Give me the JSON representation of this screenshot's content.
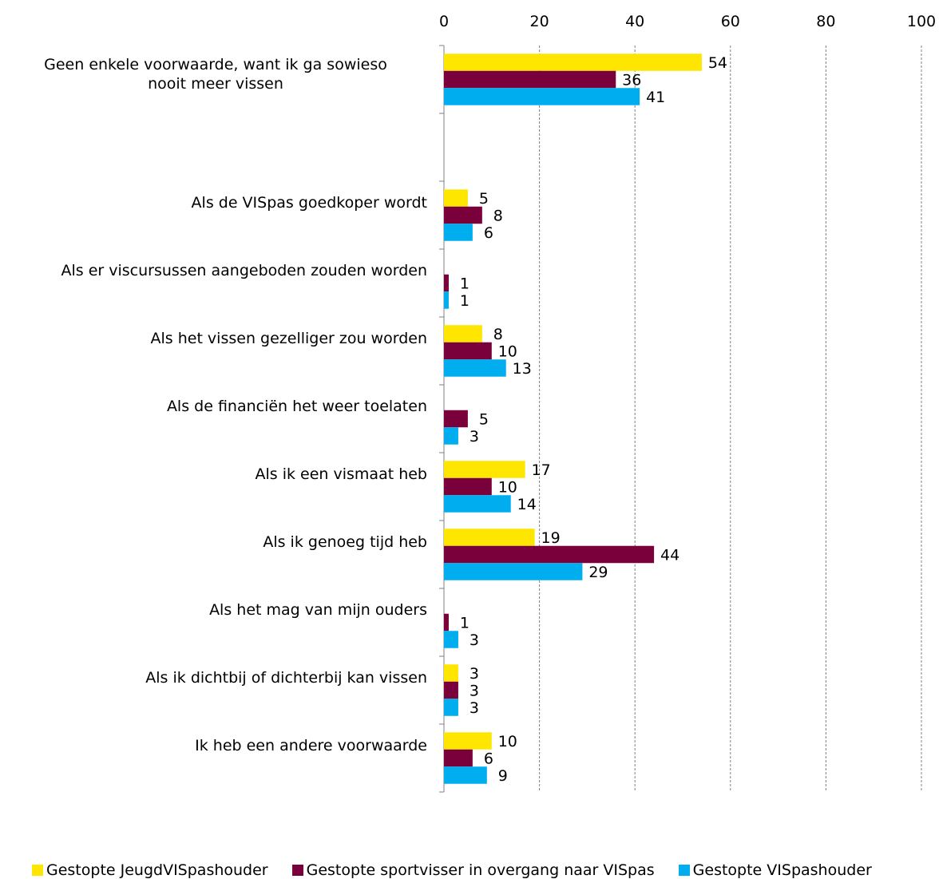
{
  "chart_data": {
    "type": "bar",
    "orientation": "horizontal",
    "categories": [
      "Geen enkele voorwaarde, want ik ga sowieso nooit meer vissen",
      "",
      "Als de VISpas goedkoper wordt",
      "Als er viscursussen aangeboden zouden worden",
      "Als het vissen gezelliger zou worden",
      "Als de financiën het weer toelaten",
      "Als ik een vismaat heb",
      "Als ik genoeg tijd heb",
      "Als het mag van mijn ouders",
      "Als ik dichtbij of dichterbij kan vissen",
      "Ik heb een andere voorwaarde"
    ],
    "series": [
      {
        "name": "Gestopte JeugdVISpashouder",
        "color": "#FFE600",
        "values": [
          54,
          null,
          5,
          null,
          8,
          null,
          17,
          19,
          null,
          3,
          10
        ]
      },
      {
        "name": "Gestopte sportvisser in overgang naar VISpas",
        "color": "#7A003C",
        "values": [
          36,
          null,
          8,
          1,
          10,
          5,
          10,
          44,
          1,
          3,
          6
        ]
      },
      {
        "name": "Gestopte VISpashouder",
        "color": "#00AEEF",
        "values": [
          41,
          null,
          6,
          1,
          13,
          3,
          14,
          29,
          3,
          3,
          9
        ]
      }
    ],
    "xlim": [
      0,
      100
    ],
    "xticks": [
      0,
      20,
      40,
      60,
      80,
      100
    ],
    "grid": true,
    "legend_position": "bottom",
    "title": "",
    "xlabel": "",
    "ylabel": ""
  }
}
